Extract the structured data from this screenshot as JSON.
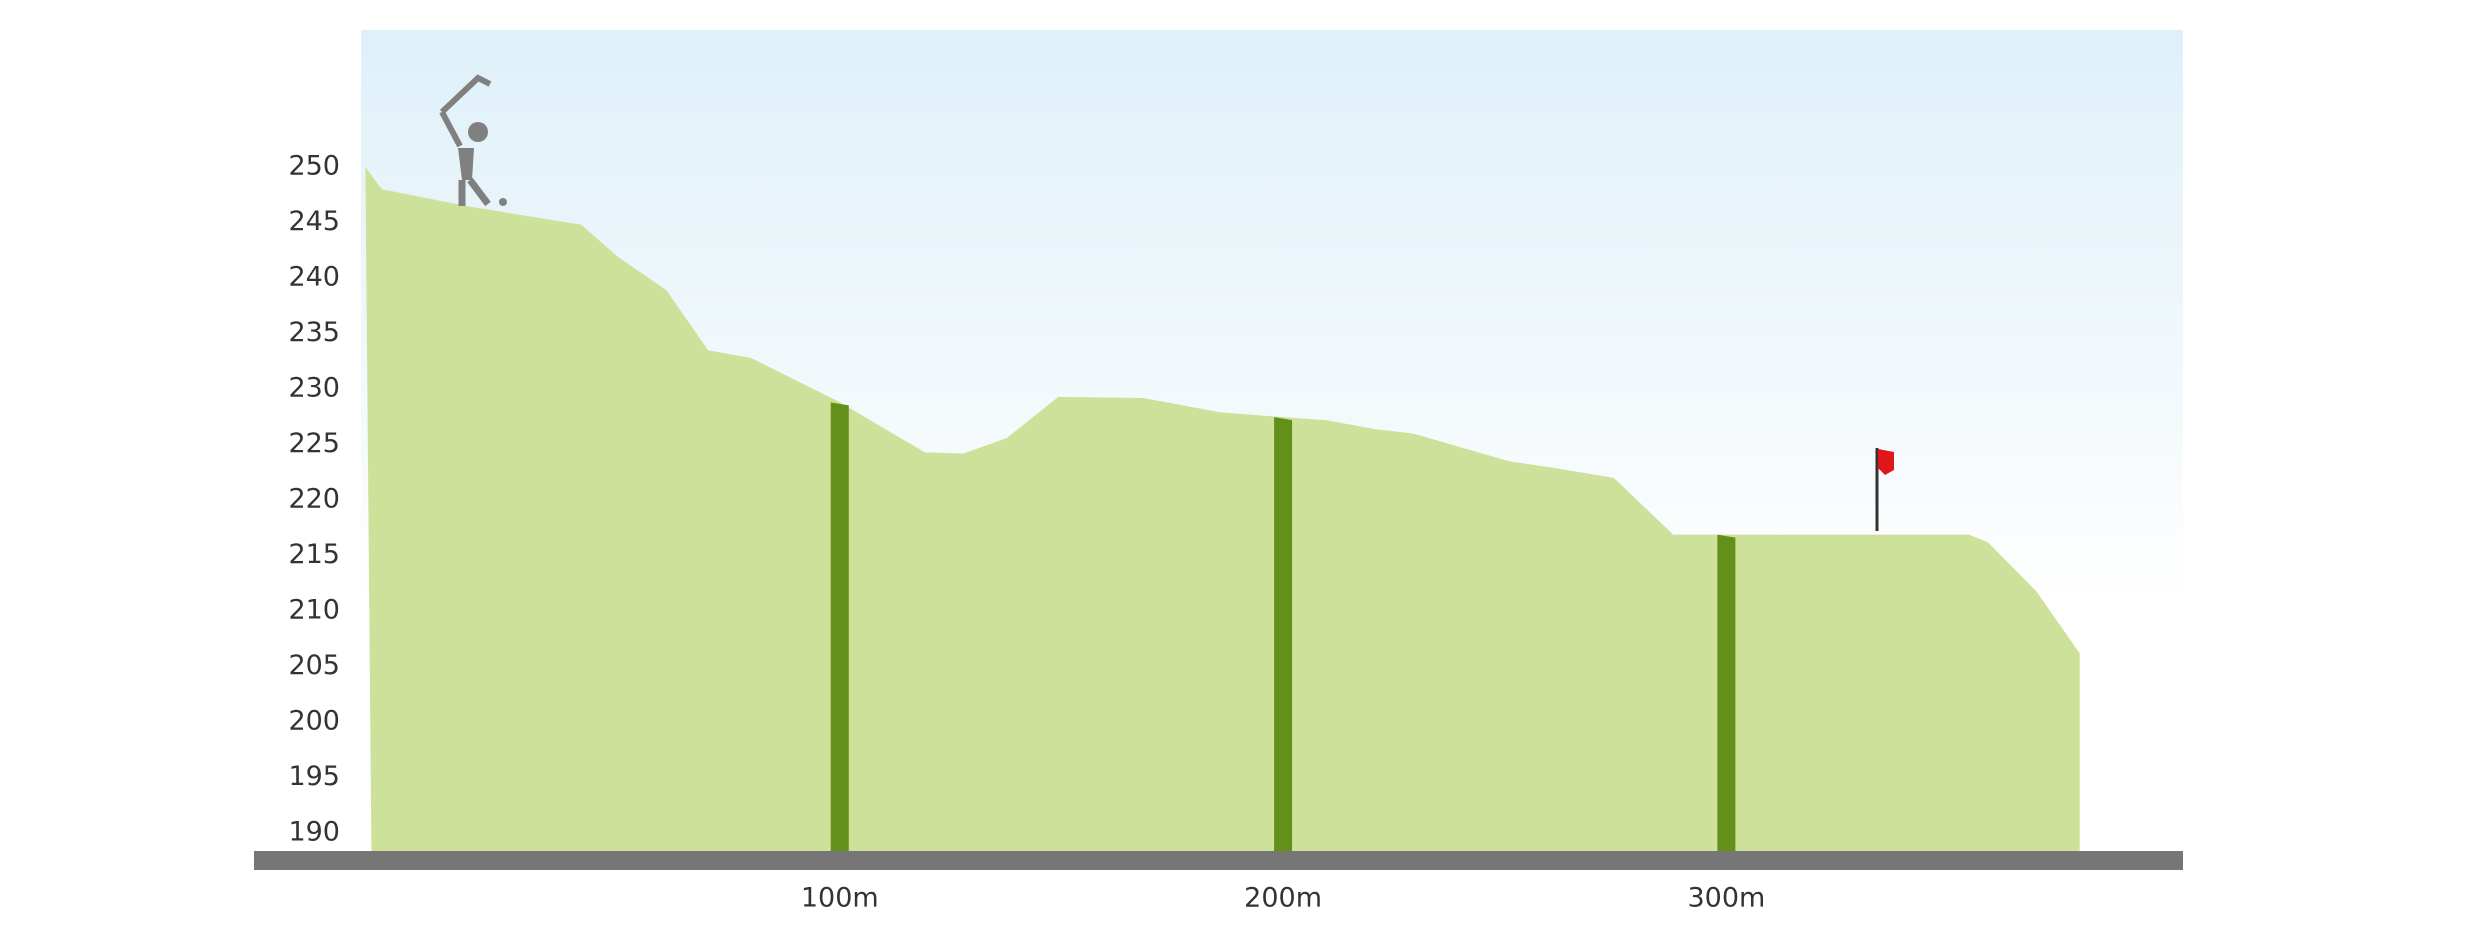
{
  "chart_data": {
    "type": "area",
    "x": [
      -7,
      -3.3,
      15.6,
      41.7,
      50,
      60.9,
      70.3,
      80,
      99.6,
      119.2,
      127.9,
      137.7,
      149.3,
      168.5,
      185.9,
      199.3,
      209.8,
      220.7,
      229.3,
      251,
      261.2,
      274.6,
      288,
      354.7,
      359,
      369.9,
      379.7
    ],
    "values": [
      250,
      248,
      246.5,
      244.8,
      241.9,
      238.9,
      233.5,
      232.8,
      228.9,
      224.3,
      224.2,
      225.6,
      229.3,
      229.2,
      227.9,
      227.5,
      227.2,
      226.4,
      226,
      223.5,
      222.9,
      222,
      216.9,
      216.9,
      216.2,
      211.8,
      206.2
    ],
    "color": "#cde19b",
    "marker_color": "#63901a",
    "xlim": [
      -8,
      403
    ],
    "xticks": [
      {
        "value": 100,
        "label": "100m"
      },
      {
        "value": 200,
        "label": "200m"
      },
      {
        "value": 300,
        "label": "300m"
      }
    ],
    "ylim": [
      188.4,
      262.3
    ],
    "yticks": [
      190,
      195,
      200,
      205,
      210,
      215,
      220,
      225,
      230,
      235,
      240,
      245,
      250
    ]
  }
}
